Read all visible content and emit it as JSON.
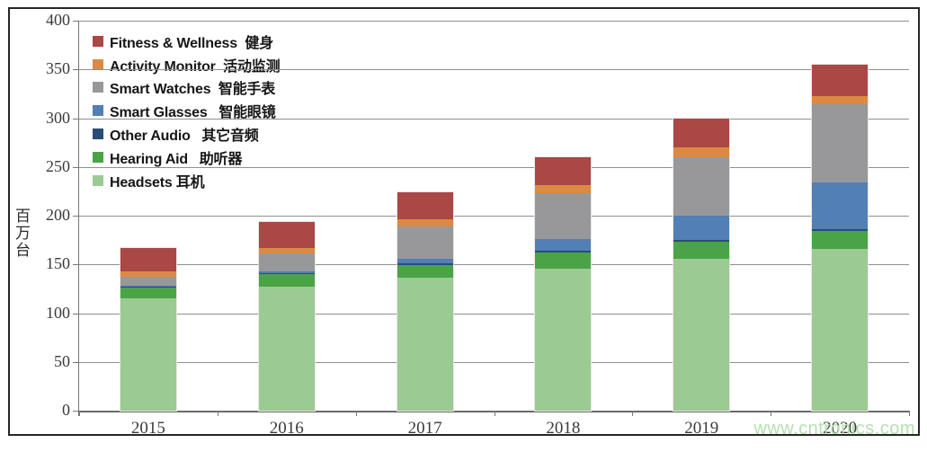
{
  "watermark": {
    "text": "www.cntronics.com",
    "color": "#B6E0B0"
  },
  "chart_data": {
    "type": "bar",
    "stacked": true,
    "title": "",
    "xlabel": "",
    "ylabel": "百万台",
    "ylim": [
      0,
      400
    ],
    "ytick_step": 50,
    "yticks": [
      400,
      350,
      300,
      250,
      200,
      150,
      100,
      50,
      0
    ],
    "grid": true,
    "legend_position": "top-left-inside",
    "categories": [
      "2015",
      "2016",
      "2017",
      "2018",
      "2019",
      "2020"
    ],
    "series": [
      {
        "id": "headsets",
        "name": "Headsets",
        "name_cn": "耳机",
        "color": "#9BCA93",
        "values": [
          115,
          127,
          136,
          146,
          156,
          166
        ]
      },
      {
        "id": "hearing-aid",
        "name": "Hearing Aid",
        "name_cn": "助听器",
        "color": "#4AA446",
        "values": [
          11,
          13,
          13,
          16,
          17,
          18
        ]
      },
      {
        "id": "other-audio",
        "name": "Other Audio",
        "name_cn": "其它音频",
        "color": "#2B4B77",
        "values": [
          1,
          1,
          2,
          2,
          2,
          2
        ]
      },
      {
        "id": "smart-glasses",
        "name": "Smart Glasses",
        "name_cn": "智能眼镜",
        "color": "#527FB5",
        "values": [
          1,
          2,
          5,
          12,
          25,
          48
        ]
      },
      {
        "id": "smart-watches",
        "name": "Smart Watches",
        "name_cn": "智能手表",
        "color": "#98989A",
        "values": [
          9,
          18,
          33,
          47,
          60,
          80
        ]
      },
      {
        "id": "activity-monitor",
        "name": "Activity Monitor",
        "name_cn": "活动监测",
        "color": "#DC8A43",
        "values": [
          6,
          6,
          7,
          8,
          10,
          9
        ]
      },
      {
        "id": "fitness-wellness",
        "name": "Fitness & Wellness",
        "name_cn": "健身",
        "color": "#A94845",
        "values": [
          24,
          27,
          28,
          29,
          30,
          32
        ]
      }
    ],
    "totals": [
      167,
      194,
      224,
      260,
      300,
      355
    ],
    "legend": [
      {
        "id": "fitness-wellness",
        "label": "Fitness & Wellness  健身",
        "color": "#A94845"
      },
      {
        "id": "activity-monitor",
        "label": "Activity Monitor  活动监测",
        "color": "#DC8A43"
      },
      {
        "id": "smart-watches",
        "label": "Smart Watches  智能手表",
        "color": "#98989A"
      },
      {
        "id": "smart-glasses",
        "label": "Smart Glasses   智能眼镜",
        "color": "#527FB5"
      },
      {
        "id": "other-audio",
        "label": "Other Audio   其它音频",
        "color": "#2B4B77"
      },
      {
        "id": "hearing-aid",
        "label": "Hearing Aid   助听器",
        "color": "#4AA446"
      },
      {
        "id": "headsets",
        "label": "Headsets 耳机",
        "color": "#9BCA93"
      }
    ]
  }
}
